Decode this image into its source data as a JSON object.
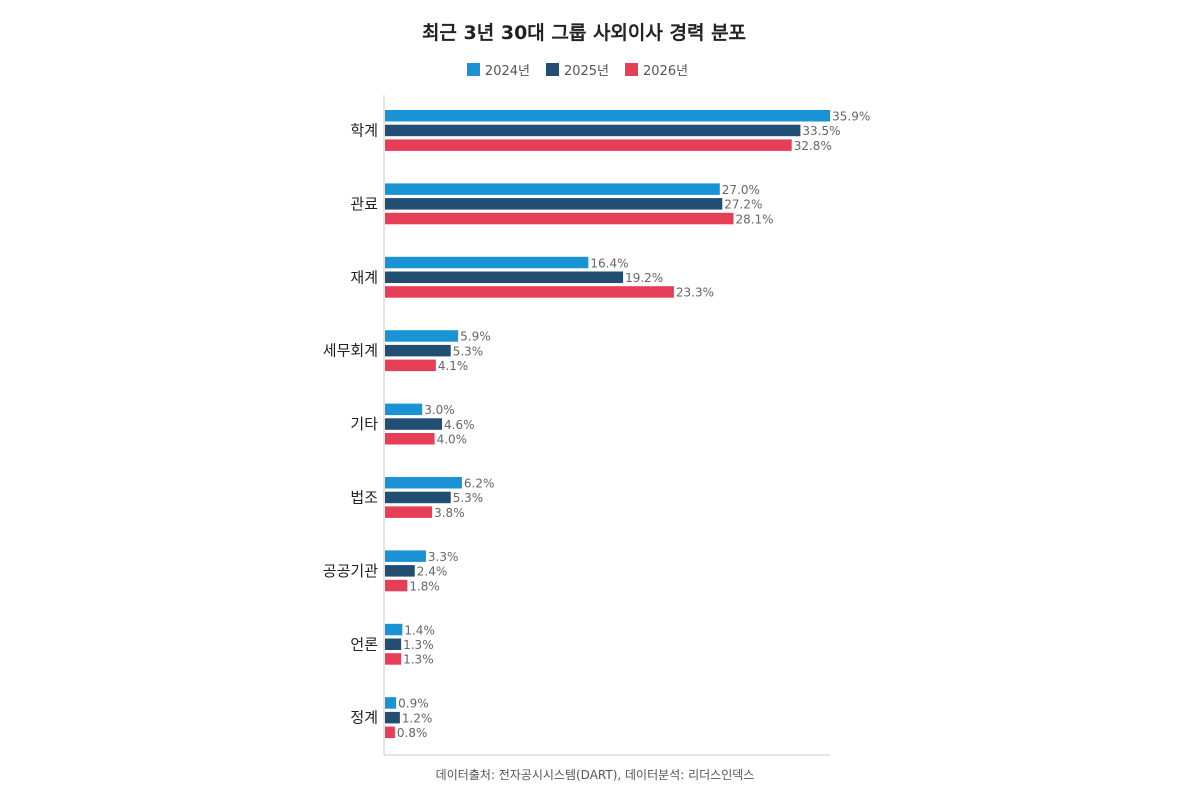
{
  "chart_data": {
    "type": "bar",
    "orientation": "horizontal",
    "title": "최근 3년 30대 그룹 사외이사 경력 분포",
    "categories": [
      "학계",
      "관료",
      "재계",
      "세무회계",
      "기타",
      "법조",
      "공공기관",
      "언론",
      "정계"
    ],
    "series": [
      {
        "name": "2024년",
        "color": "#1a93d4",
        "values": [
          35.9,
          27.0,
          16.4,
          5.9,
          3.0,
          6.2,
          3.3,
          1.4,
          0.9
        ]
      },
      {
        "name": "2025년",
        "color": "#234e73",
        "values": [
          33.5,
          27.2,
          19.2,
          5.3,
          4.6,
          5.3,
          2.4,
          1.3,
          1.2
        ]
      },
      {
        "name": "2026년",
        "color": "#e63e57",
        "values": [
          32.8,
          28.1,
          23.3,
          4.1,
          4.0,
          3.8,
          1.8,
          1.3,
          0.8
        ]
      }
    ],
    "value_format": "{v}%",
    "xlim": [
      0,
      40
    ],
    "xlabel": "",
    "ylabel": "",
    "grid": false,
    "legend_position": "top-center"
  },
  "source_note": "데이터출처: 전자공시시스템(DART), 데이터분석: 리더스인덱스"
}
